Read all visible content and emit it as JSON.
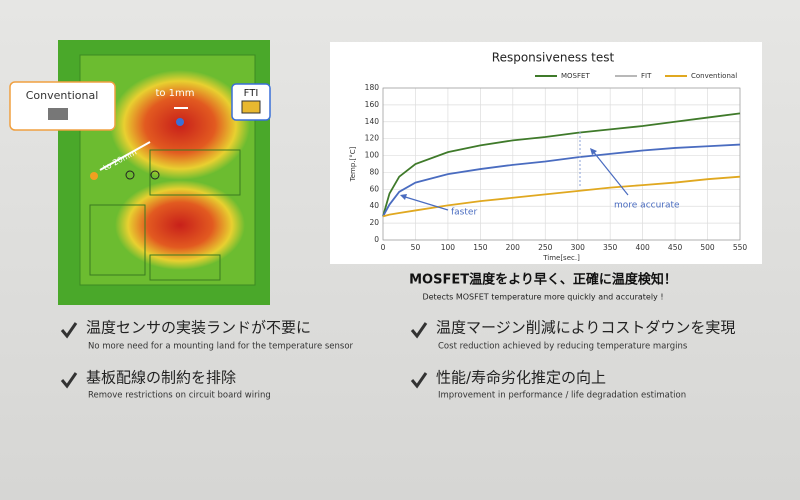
{
  "chart_data": {
    "type": "line",
    "title": "Responsiveness test",
    "x_label": "Time[sec.]",
    "y_label": "Temp.[°C]",
    "x": [
      0,
      10,
      25,
      50,
      100,
      150,
      200,
      250,
      300,
      350,
      400,
      450,
      500,
      550
    ],
    "series": [
      {
        "name": "MOSFET",
        "color": "#3f7a2a",
        "values": [
          28,
          55,
          75,
          90,
          104,
          112,
          118,
          122,
          127,
          131,
          135,
          140,
          145,
          150
        ]
      },
      {
        "name": "FIT",
        "color": "#4a6cc0",
        "legend_color": "#b8b8b8",
        "values": [
          28,
          42,
          57,
          68,
          78,
          84,
          89,
          93,
          98,
          102,
          106,
          109,
          111,
          113
        ]
      },
      {
        "name": "Conventional",
        "color": "#e0a820",
        "values": [
          28,
          30,
          32,
          35,
          41,
          46,
          50,
          54,
          58,
          62,
          65,
          68,
          72,
          75
        ]
      }
    ],
    "xlim": [
      0,
      550
    ],
    "xticks": [
      0,
      50,
      100,
      150,
      200,
      250,
      300,
      350,
      400,
      450,
      500,
      550
    ],
    "ylim": [
      0,
      180
    ],
    "yticks": [
      0,
      20,
      40,
      60,
      80,
      100,
      120,
      140,
      160,
      180
    ],
    "grid": true,
    "legend": "top",
    "annotations": [
      "faster",
      "more accurate"
    ]
  },
  "board": {
    "conventional": "Conventional",
    "fti": "FTI",
    "gap_fti": "to 1mm",
    "gap_conventional": "to 20mm"
  },
  "headline": {
    "ja": "MOSFET温度をより早く、正確に温度検知！",
    "en": "Detects MOSFET temperature more quickly and accurately !"
  },
  "benefits": [
    {
      "ja": "温度センサの実装ランドが不要に",
      "en": "No more need for a mounting land for the temperature sensor"
    },
    {
      "ja": "温度マージン削減によりコストダウンを実現",
      "en": "Cost reduction achieved by reducing temperature margins"
    },
    {
      "ja": "基板配線の制約を排除",
      "en": "Remove restrictions on circuit board wiring"
    },
    {
      "ja": "性能/寿命劣化推定の向上",
      "en": "Improvement in performance / life degradation estimation"
    }
  ]
}
